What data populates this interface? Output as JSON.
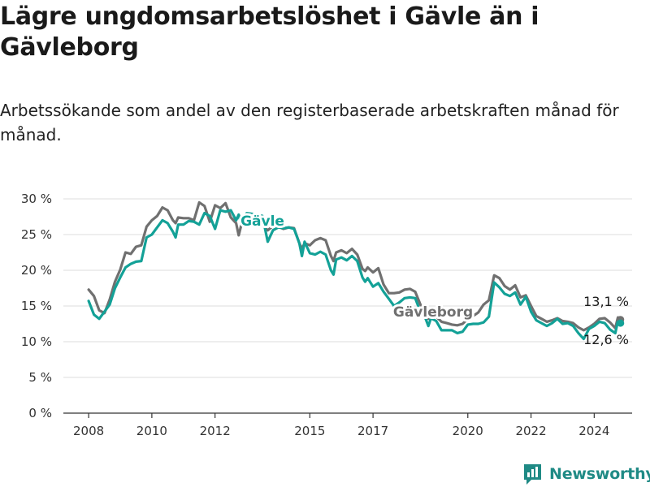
{
  "title": "Lägre ungdomsarbetslöshet i Gävle än i Gävleborg",
  "subtitle": "Arbetssökande som andel av den registerbaserade arbetskraften månad för månad.",
  "brand": "Newsworthy",
  "colors": {
    "gavle": "#13a197",
    "gavleborg": "#707070",
    "grid": "#dddddd",
    "brand": "#1f8a85"
  },
  "chart_data": {
    "type": "line",
    "y_ticks": [
      "0 %",
      "5 %",
      "10 %",
      "15 %",
      "20 %",
      "25 %",
      "30 %"
    ],
    "x_ticks": [
      "2008",
      "2010",
      "2012",
      "2015",
      "2017",
      "2020",
      "2022",
      "2024"
    ],
    "ylim": [
      0,
      30
    ],
    "grid": true,
    "series": [
      {
        "name": "Gävle",
        "color": "#13a197",
        "end_label": "12,6 %",
        "points": [
          [
            "2008-01",
            15.7
          ],
          [
            "2008-03",
            13.8
          ],
          [
            "2008-05",
            13.2
          ],
          [
            "2008-07",
            14.2
          ],
          [
            "2008-09",
            15.2
          ],
          [
            "2008-11",
            17.5
          ],
          [
            "2009-01",
            19.0
          ],
          [
            "2009-03",
            20.4
          ],
          [
            "2009-05",
            20.9
          ],
          [
            "2009-07",
            21.2
          ],
          [
            "2009-09",
            21.3
          ],
          [
            "2009-11",
            24.6
          ],
          [
            "2010-01",
            25.0
          ],
          [
            "2010-03",
            26.0
          ],
          [
            "2010-05",
            27.0
          ],
          [
            "2010-07",
            26.6
          ],
          [
            "2010-09",
            25.4
          ],
          [
            "2010-10",
            24.6
          ],
          [
            "2010-11",
            26.4
          ],
          [
            "2011-01",
            26.4
          ],
          [
            "2011-03",
            26.9
          ],
          [
            "2011-05",
            26.8
          ],
          [
            "2011-07",
            26.4
          ],
          [
            "2011-09",
            28.0
          ],
          [
            "2011-11",
            27.6
          ],
          [
            "2012-01",
            25.8
          ],
          [
            "2012-03",
            28.4
          ],
          [
            "2012-05",
            28.2
          ],
          [
            "2012-07",
            28.4
          ],
          [
            "2012-09",
            27.0
          ],
          [
            "2012-10",
            27.8
          ],
          [
            "2012-11",
            26.4
          ],
          [
            "2013-01",
            28.0
          ],
          [
            "2013-03",
            27.9
          ],
          [
            "2013-05",
            27.8
          ],
          [
            "2013-07",
            27.6
          ],
          [
            "2013-09",
            24.0
          ],
          [
            "2013-11",
            25.6
          ],
          [
            "2014-01",
            26.0
          ],
          [
            "2014-03",
            25.9
          ],
          [
            "2014-05",
            26.0
          ],
          [
            "2014-07",
            25.8
          ],
          [
            "2014-09",
            23.8
          ],
          [
            "2014-10",
            22.0
          ],
          [
            "2014-11",
            24.0
          ],
          [
            "2015-01",
            22.4
          ],
          [
            "2015-03",
            22.2
          ],
          [
            "2015-05",
            22.6
          ],
          [
            "2015-07",
            22.2
          ],
          [
            "2015-09",
            20.0
          ],
          [
            "2015-10",
            19.4
          ],
          [
            "2015-11",
            21.5
          ],
          [
            "2016-01",
            21.8
          ],
          [
            "2016-03",
            21.4
          ],
          [
            "2016-05",
            22.0
          ],
          [
            "2016-07",
            21.3
          ],
          [
            "2016-09",
            19.0
          ],
          [
            "2016-10",
            18.4
          ],
          [
            "2016-11",
            18.9
          ],
          [
            "2017-01",
            17.7
          ],
          [
            "2017-03",
            18.2
          ],
          [
            "2017-05",
            17.0
          ],
          [
            "2017-07",
            16.0
          ],
          [
            "2017-09",
            15.0
          ],
          [
            "2017-11",
            15.5
          ],
          [
            "2018-01",
            16.1
          ],
          [
            "2018-03",
            16.2
          ],
          [
            "2018-05",
            16.1
          ],
          [
            "2018-07",
            14.2
          ],
          [
            "2018-09",
            13.2
          ],
          [
            "2018-10",
            12.2
          ],
          [
            "2018-11",
            13.3
          ],
          [
            "2019-01",
            12.9
          ],
          [
            "2019-03",
            11.6
          ],
          [
            "2019-05",
            11.6
          ],
          [
            "2019-07",
            11.6
          ],
          [
            "2019-09",
            11.2
          ],
          [
            "2019-11",
            11.4
          ],
          [
            "2020-01",
            12.4
          ],
          [
            "2020-03",
            12.5
          ],
          [
            "2020-05",
            12.5
          ],
          [
            "2020-07",
            12.7
          ],
          [
            "2020-09",
            13.5
          ],
          [
            "2020-11",
            18.3
          ],
          [
            "2021-01",
            17.6
          ],
          [
            "2021-03",
            16.7
          ],
          [
            "2021-05",
            16.4
          ],
          [
            "2021-07",
            16.9
          ],
          [
            "2021-09",
            15.2
          ],
          [
            "2021-11",
            16.3
          ],
          [
            "2022-01",
            14.2
          ],
          [
            "2022-03",
            13.0
          ],
          [
            "2022-05",
            12.6
          ],
          [
            "2022-07",
            12.2
          ],
          [
            "2022-09",
            12.6
          ],
          [
            "2022-11",
            13.2
          ],
          [
            "2023-01",
            12.5
          ],
          [
            "2023-03",
            12.6
          ],
          [
            "2023-05",
            12.2
          ],
          [
            "2023-07",
            11.2
          ],
          [
            "2023-09",
            10.4
          ],
          [
            "2023-11",
            11.8
          ],
          [
            "2024-01",
            12.2
          ],
          [
            "2024-03",
            12.8
          ],
          [
            "2024-05",
            12.6
          ],
          [
            "2024-07",
            11.7
          ],
          [
            "2024-09",
            11.2
          ],
          [
            "2024-10",
            12.9
          ],
          [
            "2024-11",
            12.6
          ]
        ]
      },
      {
        "name": "Gävleborg",
        "color": "#707070",
        "end_label": "13,1 %",
        "points": [
          [
            "2008-01",
            17.3
          ],
          [
            "2008-03",
            16.4
          ],
          [
            "2008-05",
            14.4
          ],
          [
            "2008-07",
            14.0
          ],
          [
            "2008-09",
            15.9
          ],
          [
            "2008-11",
            18.4
          ],
          [
            "2009-01",
            20.1
          ],
          [
            "2009-03",
            22.5
          ],
          [
            "2009-05",
            22.3
          ],
          [
            "2009-07",
            23.3
          ],
          [
            "2009-09",
            23.5
          ],
          [
            "2009-11",
            26.1
          ],
          [
            "2010-01",
            27.0
          ],
          [
            "2010-03",
            27.6
          ],
          [
            "2010-05",
            28.8
          ],
          [
            "2010-07",
            28.4
          ],
          [
            "2010-09",
            27.0
          ],
          [
            "2010-10",
            26.6
          ],
          [
            "2010-11",
            27.4
          ],
          [
            "2011-01",
            27.3
          ],
          [
            "2011-03",
            27.3
          ],
          [
            "2011-05",
            27.0
          ],
          [
            "2011-07",
            29.5
          ],
          [
            "2011-09",
            29.0
          ],
          [
            "2011-11",
            26.8
          ],
          [
            "2012-01",
            29.1
          ],
          [
            "2012-03",
            28.7
          ],
          [
            "2012-05",
            29.4
          ],
          [
            "2012-07",
            27.4
          ],
          [
            "2012-09",
            26.6
          ],
          [
            "2012-10",
            24.9
          ],
          [
            "2012-11",
            26.4
          ],
          [
            "2013-01",
            26.6
          ],
          [
            "2013-03",
            27.0
          ],
          [
            "2013-05",
            26.7
          ],
          [
            "2013-07",
            26.3
          ],
          [
            "2013-09",
            25.6
          ],
          [
            "2013-11",
            26.2
          ],
          [
            "2014-01",
            26.1
          ],
          [
            "2014-03",
            25.8
          ],
          [
            "2014-05",
            26.0
          ],
          [
            "2014-07",
            25.9
          ],
          [
            "2014-09",
            23.8
          ],
          [
            "2014-10",
            23.0
          ],
          [
            "2014-11",
            23.8
          ],
          [
            "2015-01",
            23.5
          ],
          [
            "2015-03",
            24.2
          ],
          [
            "2015-05",
            24.5
          ],
          [
            "2015-07",
            24.2
          ],
          [
            "2015-09",
            22.0
          ],
          [
            "2015-10",
            21.3
          ],
          [
            "2015-11",
            22.5
          ],
          [
            "2016-01",
            22.8
          ],
          [
            "2016-03",
            22.4
          ],
          [
            "2016-05",
            23.0
          ],
          [
            "2016-07",
            22.2
          ],
          [
            "2016-09",
            20.2
          ],
          [
            "2016-10",
            19.9
          ],
          [
            "2016-11",
            20.4
          ],
          [
            "2017-01",
            19.7
          ],
          [
            "2017-03",
            20.3
          ],
          [
            "2017-05",
            18.0
          ],
          [
            "2017-07",
            16.8
          ],
          [
            "2017-09",
            16.8
          ],
          [
            "2017-11",
            16.9
          ],
          [
            "2018-01",
            17.3
          ],
          [
            "2018-03",
            17.4
          ],
          [
            "2018-05",
            17.0
          ],
          [
            "2018-07",
            15.2
          ],
          [
            "2018-09",
            14.0
          ],
          [
            "2018-10",
            13.2
          ],
          [
            "2018-11",
            14.0
          ],
          [
            "2019-01",
            13.5
          ],
          [
            "2019-03",
            12.8
          ],
          [
            "2019-05",
            12.6
          ],
          [
            "2019-07",
            12.4
          ],
          [
            "2019-09",
            12.3
          ],
          [
            "2019-11",
            12.5
          ],
          [
            "2020-01",
            13.2
          ],
          [
            "2020-03",
            13.6
          ],
          [
            "2020-05",
            14.1
          ],
          [
            "2020-07",
            15.2
          ],
          [
            "2020-09",
            15.8
          ],
          [
            "2020-11",
            19.3
          ],
          [
            "2021-01",
            18.9
          ],
          [
            "2021-03",
            17.8
          ],
          [
            "2021-05",
            17.3
          ],
          [
            "2021-07",
            17.9
          ],
          [
            "2021-09",
            16.2
          ],
          [
            "2021-11",
            16.5
          ],
          [
            "2022-01",
            15.0
          ],
          [
            "2022-03",
            13.6
          ],
          [
            "2022-05",
            13.2
          ],
          [
            "2022-07",
            12.8
          ],
          [
            "2022-09",
            13.0
          ],
          [
            "2022-11",
            13.3
          ],
          [
            "2023-01",
            12.9
          ],
          [
            "2023-03",
            12.8
          ],
          [
            "2023-05",
            12.6
          ],
          [
            "2023-07",
            12.0
          ],
          [
            "2023-09",
            11.6
          ],
          [
            "2023-11",
            12.0
          ],
          [
            "2024-01",
            12.5
          ],
          [
            "2024-03",
            13.2
          ],
          [
            "2024-05",
            13.3
          ],
          [
            "2024-07",
            12.7
          ],
          [
            "2024-09",
            11.9
          ],
          [
            "2024-10",
            13.4
          ],
          [
            "2024-11",
            13.1
          ]
        ]
      }
    ]
  }
}
